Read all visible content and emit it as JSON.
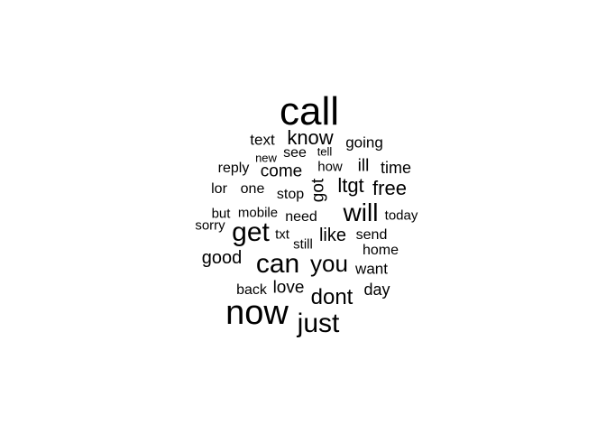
{
  "word_cloud": {
    "text_color": "#000000",
    "background": "#ffffff",
    "words": [
      {
        "text": "call",
        "weight": 10
      },
      {
        "text": "now",
        "weight": 9
      },
      {
        "text": "just",
        "weight": 7
      },
      {
        "text": "can",
        "weight": 7
      },
      {
        "text": "get",
        "weight": 7
      },
      {
        "text": "will",
        "weight": 6
      },
      {
        "text": "you",
        "weight": 6
      },
      {
        "text": "dont",
        "weight": 6
      },
      {
        "text": "know",
        "weight": 5
      },
      {
        "text": "ltgt",
        "weight": 5
      },
      {
        "text": "free",
        "weight": 5
      },
      {
        "text": "like",
        "weight": 5
      },
      {
        "text": "good",
        "weight": 4
      },
      {
        "text": "love",
        "weight": 4
      },
      {
        "text": "come",
        "weight": 4
      },
      {
        "text": "got",
        "weight": 4
      },
      {
        "text": "ill",
        "weight": 4
      },
      {
        "text": "day",
        "weight": 3
      },
      {
        "text": "time",
        "weight": 3
      },
      {
        "text": "text",
        "weight": 3
      },
      {
        "text": "going",
        "weight": 3
      },
      {
        "text": "want",
        "weight": 3
      },
      {
        "text": "home",
        "weight": 3
      },
      {
        "text": "need",
        "weight": 3
      },
      {
        "text": "send",
        "weight": 3
      },
      {
        "text": "back",
        "weight": 3
      },
      {
        "text": "one",
        "weight": 3
      },
      {
        "text": "lor",
        "weight": 3
      },
      {
        "text": "reply",
        "weight": 3
      },
      {
        "text": "stop",
        "weight": 3
      },
      {
        "text": "see",
        "weight": 3
      },
      {
        "text": "how",
        "weight": 3
      },
      {
        "text": "sorry",
        "weight": 3
      },
      {
        "text": "but",
        "weight": 3
      },
      {
        "text": "mobile",
        "weight": 3
      },
      {
        "text": "today",
        "weight": 3
      },
      {
        "text": "txt",
        "weight": 3
      },
      {
        "text": "still",
        "weight": 3
      },
      {
        "text": "new",
        "weight": 2
      },
      {
        "text": "tell",
        "weight": 2
      }
    ]
  }
}
